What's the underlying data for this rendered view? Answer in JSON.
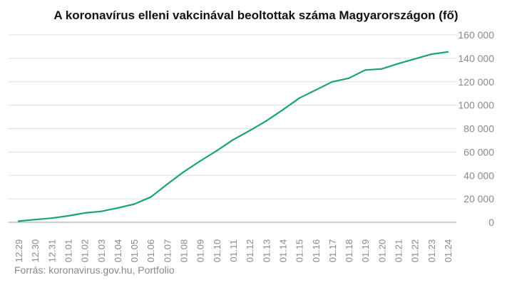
{
  "chart_data": {
    "type": "line",
    "title": "A koronavírus elleni vakcinával beoltottak száma Magyarországon (fő)",
    "source": "Forrás: koronavirus.gov.hu, Portfolio",
    "categories": [
      "12.29",
      "12.30",
      "12.31",
      "01.01",
      "01.02",
      "01.03",
      "01.04",
      "01.05",
      "01.06",
      "01.07",
      "01.08",
      "01.09",
      "01.10",
      "01.11",
      "01.12",
      "01.13",
      "01.14",
      "01.15",
      "01.16",
      "01.17",
      "01.18",
      "01.19",
      "01.20",
      "01.21",
      "01.22",
      "01.23",
      "01.24"
    ],
    "series": [
      {
        "values": [
          1000,
          2300,
          3500,
          5500,
          8000,
          9300,
          12200,
          15500,
          21500,
          32500,
          43000,
          52300,
          61000,
          70500,
          78300,
          86500,
          96000,
          106000,
          113000,
          120000,
          123000,
          130000,
          131000,
          135500,
          139500,
          143500,
          145500
        ]
      }
    ],
    "ylim": [
      0,
      160000
    ],
    "yticks": [
      0,
      20000,
      40000,
      60000,
      80000,
      100000,
      120000,
      140000,
      160000
    ],
    "ytick_labels": [
      "0",
      "20 000",
      "40 000",
      "60 000",
      "80 000",
      "100 000",
      "120 000",
      "140 000",
      "160 000"
    ],
    "y_axis_position": "right",
    "grid": true,
    "line_color": "#1aa37a",
    "grid_color": "#dcdcdc"
  }
}
